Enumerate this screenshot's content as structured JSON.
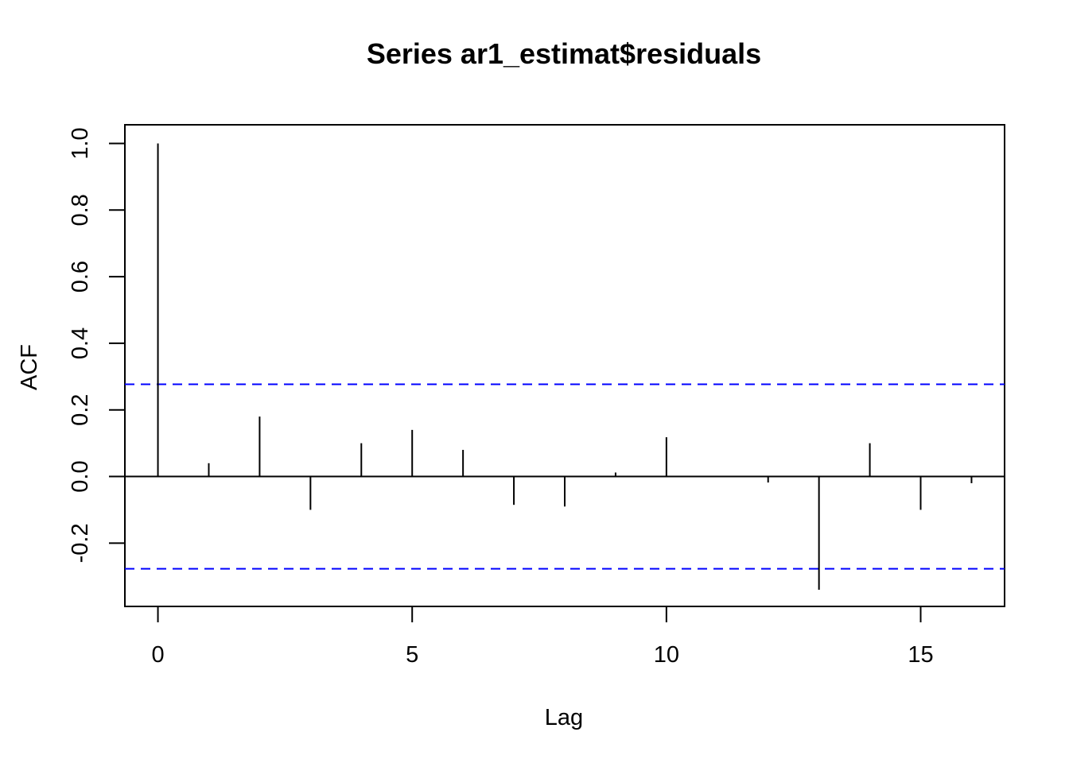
{
  "chart_data": {
    "type": "bar",
    "title": "Series  ar1_estimat$residuals",
    "xlabel": "Lag",
    "ylabel": "ACF",
    "xlim": [
      -0.65,
      16.65
    ],
    "ylim": [
      -0.39,
      1.056
    ],
    "x_ticks": [
      0,
      5,
      10,
      15
    ],
    "y_ticks": [
      -0.2,
      0.0,
      0.2,
      0.4,
      0.6,
      0.8,
      1.0
    ],
    "x_tick_labels": [
      "0",
      "5",
      "10",
      "15"
    ],
    "y_tick_labels": [
      "-0.2",
      "0.0",
      "0.2",
      "0.4",
      "0.6",
      "0.8",
      "1.0"
    ],
    "lags": [
      0,
      1,
      2,
      3,
      4,
      5,
      6,
      7,
      8,
      9,
      10,
      11,
      12,
      13,
      14,
      15,
      16
    ],
    "values": [
      1.0,
      0.04,
      0.18,
      -0.1,
      0.1,
      0.14,
      0.08,
      -0.085,
      -0.09,
      0.012,
      0.118,
      0.002,
      -0.018,
      -0.34,
      0.1,
      -0.1,
      -0.02
    ],
    "confidence_bound": 0.277,
    "bound_color": "#0000ff",
    "line_color": "#000000",
    "grid": false
  }
}
